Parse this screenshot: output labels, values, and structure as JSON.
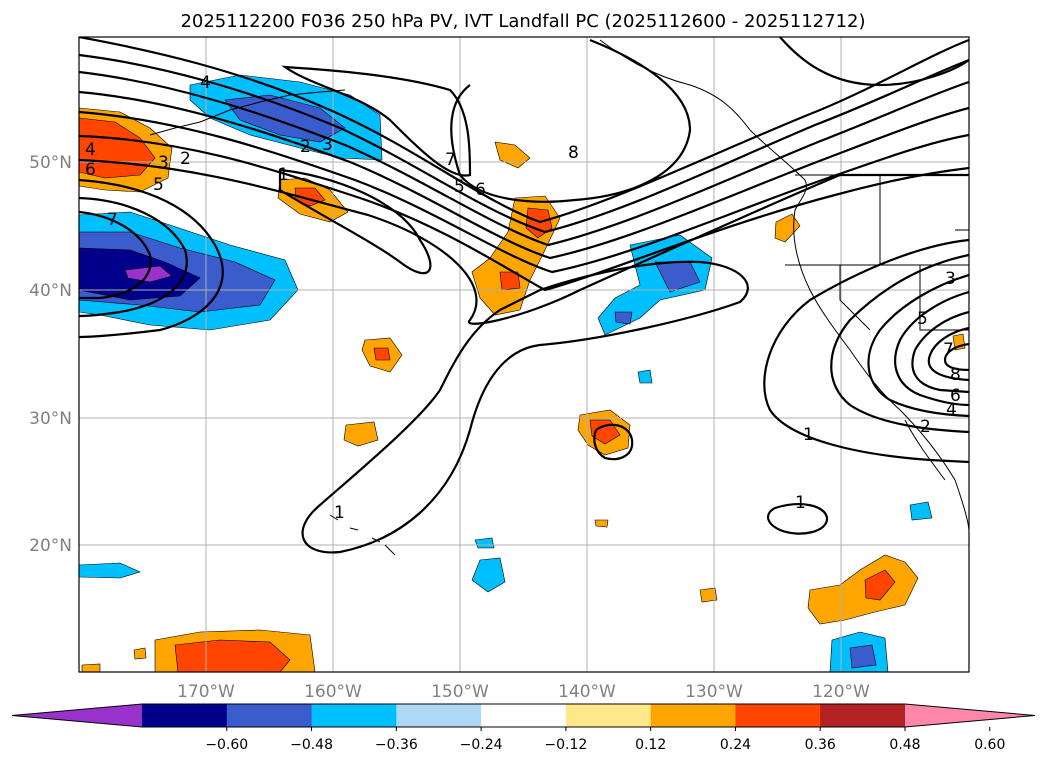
{
  "title": "2025112200 F036 250 hPa PV, IVT Landfall PC (2025112600 - 2025112712)",
  "axes": {
    "lon_labels": [
      "170°W",
      "160°W",
      "150°W",
      "140°W",
      "130°W",
      "120°W"
    ],
    "lat_labels": [
      "50°N",
      "40°N",
      "30°N",
      "20°N"
    ]
  },
  "colorbar": {
    "ticks": [
      "−0.60",
      "−0.48",
      "−0.36",
      "−0.24",
      "−0.12",
      "0.12",
      "0.24",
      "0.36",
      "0.48",
      "0.60"
    ],
    "colors": [
      "#9932cc",
      "#00008b",
      "#3a5ccc",
      "#00bfff",
      "#add8f6",
      "#ffffff",
      "#ffe88a",
      "#ffa500",
      "#ff4500",
      "#b22222",
      "#ff88aa"
    ]
  },
  "contour_labels": [
    {
      "text": "4"
    },
    {
      "text": "4"
    },
    {
      "text": "3"
    },
    {
      "text": "2"
    },
    {
      "text": "6"
    },
    {
      "text": "5"
    },
    {
      "text": "7"
    },
    {
      "text": "2"
    },
    {
      "text": "3"
    },
    {
      "text": "1"
    },
    {
      "text": "7"
    },
    {
      "text": "5"
    },
    {
      "text": "6"
    },
    {
      "text": "8"
    },
    {
      "text": "3"
    },
    {
      "text": "5"
    },
    {
      "text": "7"
    },
    {
      "text": "8"
    },
    {
      "text": "6"
    },
    {
      "text": "4"
    },
    {
      "text": "2"
    },
    {
      "text": "1"
    },
    {
      "text": "1"
    },
    {
      "text": "1"
    }
  ]
}
